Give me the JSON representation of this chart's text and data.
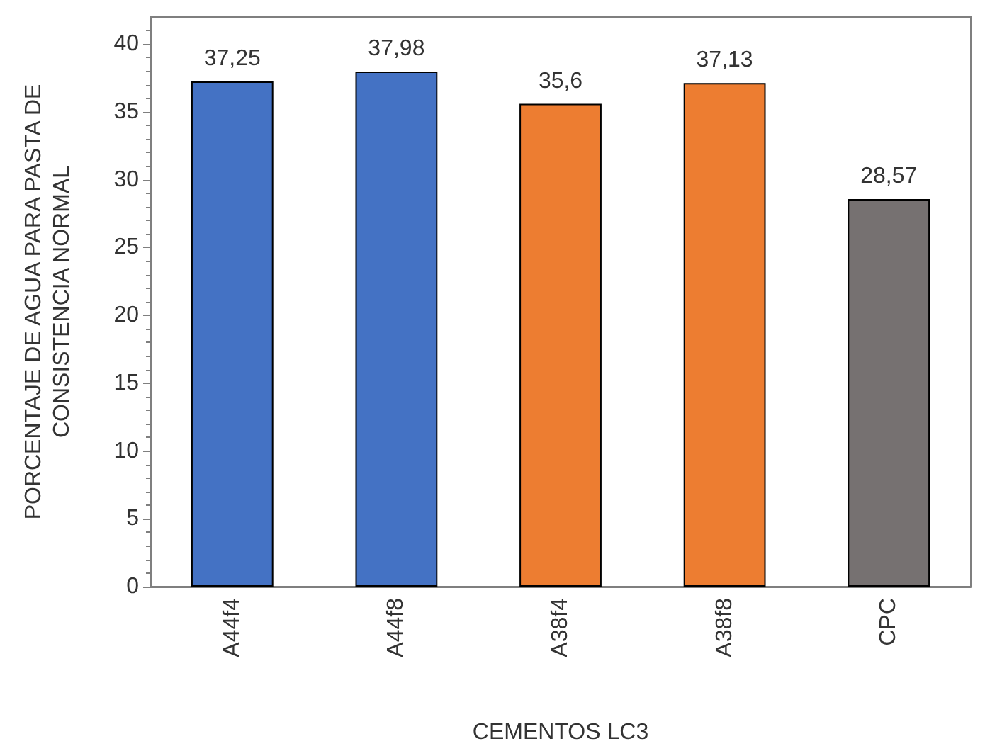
{
  "chart_data": {
    "type": "bar",
    "xlabel": "CEMENTOS LC3",
    "ylabel": "PORCENTAJE DE AGUA PARA PASTA DE CONSISTENCIA NORMAL",
    "categories": [
      "A44f4",
      "A44f8",
      "A38f4",
      "A38f8",
      "CPC"
    ],
    "values": [
      37.25,
      37.98,
      35.6,
      37.13,
      28.57
    ],
    "colors": [
      "#4472c4",
      "#4472c4",
      "#ed7d31",
      "#ed7d31",
      "#767171"
    ],
    "value_labels": [
      "37,25",
      "37,98",
      "35,6",
      "37,13",
      "28,57"
    ],
    "ylim": [
      0,
      42
    ],
    "yticks": [
      0,
      5,
      10,
      15,
      20,
      25,
      30,
      35,
      40
    ],
    "grid": false
  }
}
